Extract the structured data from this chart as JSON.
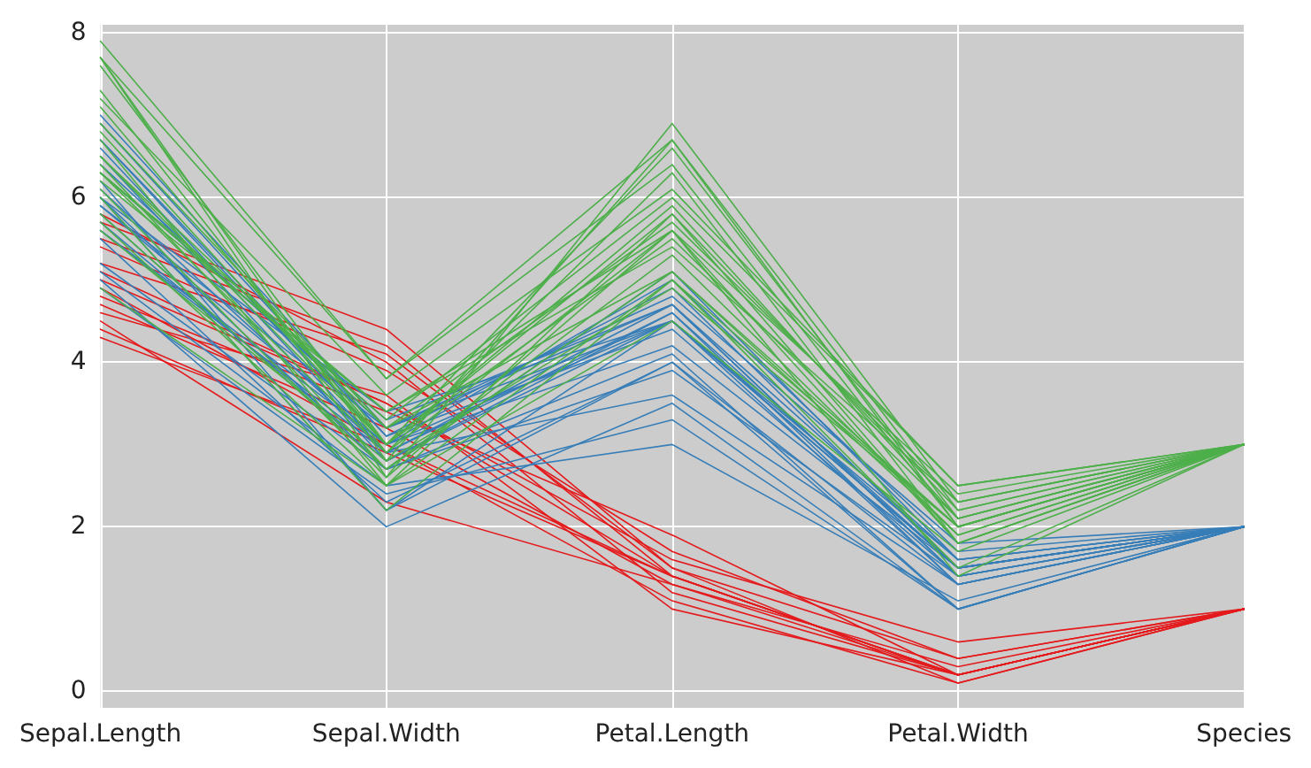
{
  "chart_data": {
    "type": "line",
    "categories": [
      "Sepal.Length",
      "Sepal.Width",
      "Petal.Length",
      "Petal.Width",
      "Species"
    ],
    "ylim": [
      -0.2,
      8.1
    ],
    "yticks": [
      0,
      2,
      4,
      6,
      8
    ],
    "grid": true,
    "marker": "none",
    "line_style": "solid",
    "series": [
      {
        "color": "#e41a1c",
        "values": [
          5.8,
          4.0,
          1.2,
          0.2,
          1
        ]
      },
      {
        "color": "#e41a1c",
        "values": [
          5.7,
          4.4,
          1.5,
          0.4,
          1
        ]
      },
      {
        "color": "#e41a1c",
        "values": [
          4.3,
          3.0,
          1.1,
          0.1,
          1
        ]
      },
      {
        "color": "#e41a1c",
        "values": [
          4.5,
          2.3,
          1.3,
          0.3,
          1
        ]
      },
      {
        "color": "#e41a1c",
        "values": [
          5.0,
          3.5,
          1.6,
          0.6,
          1
        ]
      },
      {
        "color": "#e41a1c",
        "values": [
          4.8,
          3.4,
          1.9,
          0.2,
          1
        ]
      },
      {
        "color": "#e41a1c",
        "values": [
          5.5,
          4.2,
          1.4,
          0.2,
          1
        ]
      },
      {
        "color": "#e41a1c",
        "values": [
          4.6,
          3.6,
          1.0,
          0.2,
          1
        ]
      },
      {
        "color": "#e41a1c",
        "values": [
          5.1,
          3.5,
          1.4,
          0.2,
          1
        ]
      },
      {
        "color": "#e41a1c",
        "values": [
          4.9,
          3.0,
          1.4,
          0.2,
          1
        ]
      },
      {
        "color": "#e41a1c",
        "values": [
          5.4,
          3.9,
          1.7,
          0.4,
          1
        ]
      },
      {
        "color": "#e41a1c",
        "values": [
          4.4,
          2.9,
          1.4,
          0.2,
          1
        ]
      },
      {
        "color": "#e41a1c",
        "values": [
          5.2,
          4.1,
          1.5,
          0.1,
          1
        ]
      },
      {
        "color": "#e41a1c",
        "values": [
          4.7,
          3.2,
          1.3,
          0.2,
          1
        ]
      },
      {
        "color": "#377eb8",
        "values": [
          7.0,
          3.2,
          4.7,
          1.4,
          2
        ]
      },
      {
        "color": "#377eb8",
        "values": [
          6.4,
          3.2,
          4.5,
          1.5,
          2
        ]
      },
      {
        "color": "#377eb8",
        "values": [
          6.9,
          3.1,
          4.9,
          1.5,
          2
        ]
      },
      {
        "color": "#377eb8",
        "values": [
          5.5,
          2.3,
          4.0,
          1.3,
          2
        ]
      },
      {
        "color": "#377eb8",
        "values": [
          6.5,
          2.8,
          4.6,
          1.5,
          2
        ]
      },
      {
        "color": "#377eb8",
        "values": [
          5.7,
          2.8,
          4.5,
          1.3,
          2
        ]
      },
      {
        "color": "#377eb8",
        "values": [
          6.3,
          3.3,
          4.7,
          1.6,
          2
        ]
      },
      {
        "color": "#377eb8",
        "values": [
          4.9,
          2.4,
          3.3,
          1.0,
          2
        ]
      },
      {
        "color": "#377eb8",
        "values": [
          6.6,
          2.9,
          4.6,
          1.3,
          2
        ]
      },
      {
        "color": "#377eb8",
        "values": [
          5.2,
          2.7,
          3.9,
          1.4,
          2
        ]
      },
      {
        "color": "#377eb8",
        "values": [
          5.0,
          2.0,
          3.5,
          1.0,
          2
        ]
      },
      {
        "color": "#377eb8",
        "values": [
          5.9,
          3.0,
          4.2,
          1.5,
          2
        ]
      },
      {
        "color": "#377eb8",
        "values": [
          6.0,
          2.2,
          4.0,
          1.0,
          2
        ]
      },
      {
        "color": "#377eb8",
        "values": [
          6.1,
          2.9,
          4.7,
          1.4,
          2
        ]
      },
      {
        "color": "#377eb8",
        "values": [
          5.6,
          2.9,
          3.6,
          1.3,
          2
        ]
      },
      {
        "color": "#377eb8",
        "values": [
          6.7,
          3.1,
          4.4,
          1.4,
          2
        ]
      },
      {
        "color": "#377eb8",
        "values": [
          5.6,
          3.0,
          4.5,
          1.5,
          2
        ]
      },
      {
        "color": "#377eb8",
        "values": [
          5.8,
          2.7,
          4.1,
          1.0,
          2
        ]
      },
      {
        "color": "#377eb8",
        "values": [
          6.2,
          2.2,
          4.5,
          1.5,
          2
        ]
      },
      {
        "color": "#377eb8",
        "values": [
          5.9,
          3.2,
          4.8,
          1.8,
          2
        ]
      },
      {
        "color": "#377eb8",
        "values": [
          6.7,
          3.0,
          5.0,
          1.7,
          2
        ]
      },
      {
        "color": "#377eb8",
        "values": [
          6.0,
          2.7,
          5.1,
          1.6,
          2
        ]
      },
      {
        "color": "#377eb8",
        "values": [
          5.1,
          2.5,
          3.0,
          1.1,
          2
        ]
      },
      {
        "color": "#377eb8",
        "values": [
          6.0,
          3.4,
          4.5,
          1.6,
          2
        ]
      },
      {
        "color": "#4daf4a",
        "values": [
          6.3,
          3.3,
          6.0,
          2.5,
          3
        ]
      },
      {
        "color": "#4daf4a",
        "values": [
          5.8,
          2.7,
          5.1,
          1.9,
          3
        ]
      },
      {
        "color": "#4daf4a",
        "values": [
          7.1,
          3.0,
          5.9,
          2.1,
          3
        ]
      },
      {
        "color": "#4daf4a",
        "values": [
          6.3,
          2.9,
          5.6,
          1.8,
          3
        ]
      },
      {
        "color": "#4daf4a",
        "values": [
          6.5,
          3.0,
          5.8,
          2.2,
          3
        ]
      },
      {
        "color": "#4daf4a",
        "values": [
          7.6,
          3.0,
          6.6,
          2.1,
          3
        ]
      },
      {
        "color": "#4daf4a",
        "values": [
          4.9,
          2.5,
          4.5,
          1.7,
          3
        ]
      },
      {
        "color": "#4daf4a",
        "values": [
          7.3,
          2.9,
          6.3,
          1.8,
          3
        ]
      },
      {
        "color": "#4daf4a",
        "values": [
          6.7,
          2.5,
          5.8,
          1.8,
          3
        ]
      },
      {
        "color": "#4daf4a",
        "values": [
          7.2,
          3.6,
          6.1,
          2.5,
          3
        ]
      },
      {
        "color": "#4daf4a",
        "values": [
          6.5,
          3.2,
          5.1,
          2.0,
          3
        ]
      },
      {
        "color": "#4daf4a",
        "values": [
          6.4,
          2.7,
          5.3,
          1.9,
          3
        ]
      },
      {
        "color": "#4daf4a",
        "values": [
          6.8,
          3.0,
          5.5,
          2.1,
          3
        ]
      },
      {
        "color": "#4daf4a",
        "values": [
          5.7,
          2.5,
          5.0,
          2.0,
          3
        ]
      },
      {
        "color": "#4daf4a",
        "values": [
          7.7,
          3.8,
          6.7,
          2.2,
          3
        ]
      },
      {
        "color": "#4daf4a",
        "values": [
          7.7,
          2.6,
          6.9,
          2.3,
          3
        ]
      },
      {
        "color": "#4daf4a",
        "values": [
          6.0,
          2.2,
          5.0,
          1.5,
          3
        ]
      },
      {
        "color": "#4daf4a",
        "values": [
          6.9,
          3.2,
          5.7,
          2.3,
          3
        ]
      },
      {
        "color": "#4daf4a",
        "values": [
          5.6,
          2.8,
          4.9,
          2.0,
          3
        ]
      },
      {
        "color": "#4daf4a",
        "values": [
          7.7,
          2.8,
          6.7,
          2.0,
          3
        ]
      },
      {
        "color": "#4daf4a",
        "values": [
          7.9,
          3.8,
          6.4,
          2.0,
          3
        ]
      },
      {
        "color": "#4daf4a",
        "values": [
          6.1,
          2.6,
          5.6,
          1.4,
          3
        ]
      },
      {
        "color": "#4daf4a",
        "values": [
          6.3,
          3.4,
          5.6,
          2.4,
          3
        ]
      },
      {
        "color": "#4daf4a",
        "values": [
          6.2,
          3.4,
          5.4,
          2.3,
          3
        ]
      }
    ]
  }
}
